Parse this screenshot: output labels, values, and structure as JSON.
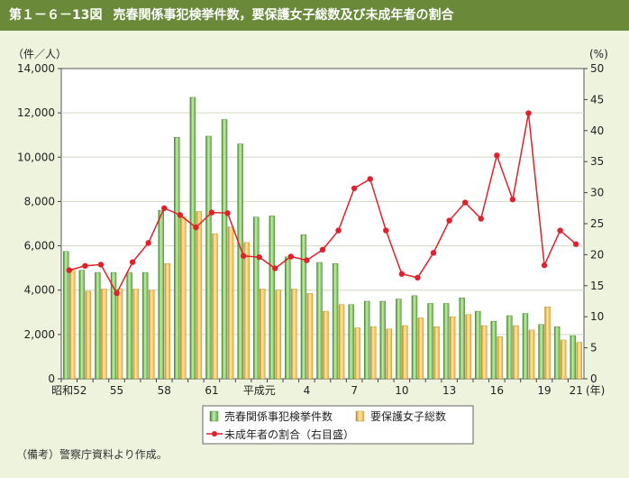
{
  "header": {
    "fig_label": "第１－６－13図",
    "title": "売春関係事犯検挙件数，要保護女子総数及び未成年者の割合"
  },
  "note": "（備考）警察庁資料より作成。",
  "colors": {
    "bar_green": "#5fae3e",
    "bar_orange": "#f0b33a",
    "line_red": "#e0202a",
    "background": "#eef3de",
    "header": "#6a8a3a"
  },
  "chart_data": {
    "type": "bar",
    "left_axis_unit": "（件／人）",
    "right_axis_unit": "(%)",
    "x_unit": "(年)",
    "categories": [
      "昭和52",
      "53",
      "54",
      "55",
      "56",
      "57",
      "58",
      "59",
      "60",
      "61",
      "62",
      "63",
      "平成元",
      "2",
      "3",
      "4",
      "5",
      "6",
      "7",
      "8",
      "9",
      "10",
      "11",
      "12",
      "13",
      "14",
      "15",
      "16",
      "17",
      "18",
      "19",
      "20",
      "21"
    ],
    "x_tick_labels": [
      {
        "index": 0,
        "label": "昭和52"
      },
      {
        "index": 3,
        "label": "55"
      },
      {
        "index": 6,
        "label": "58"
      },
      {
        "index": 9,
        "label": "61"
      },
      {
        "index": 12,
        "label": "平成元"
      },
      {
        "index": 15,
        "label": "4"
      },
      {
        "index": 18,
        "label": "7"
      },
      {
        "index": 21,
        "label": "10"
      },
      {
        "index": 24,
        "label": "13"
      },
      {
        "index": 27,
        "label": "16"
      },
      {
        "index": 30,
        "label": "19"
      },
      {
        "index": 32,
        "label": "21"
      }
    ],
    "ylim": [
      0,
      14000
    ],
    "y_ticks": [
      "0",
      "2,000",
      "4,000",
      "6,000",
      "8,000",
      "10,000",
      "12,000",
      "14,000"
    ],
    "y2lim": [
      0,
      50
    ],
    "y2_ticks": [
      "0",
      "5",
      "10",
      "15",
      "20",
      "25",
      "30",
      "35",
      "40",
      "45",
      "50"
    ],
    "series": [
      {
        "name": "売春関係事犯検挙件数",
        "axis": "left",
        "kind": "bar",
        "color": "#5fae3e",
        "values": [
          5750,
          4900,
          4800,
          4800,
          4800,
          4800,
          7600,
          10900,
          12700,
          10950,
          11700,
          10600,
          7300,
          7350,
          5500,
          6500,
          5250,
          5200,
          3350,
          3500,
          3500,
          3600,
          3750,
          3400,
          3400,
          3650,
          3050,
          2600,
          2850,
          2950,
          2450,
          2350,
          1950
        ]
      },
      {
        "name": "要保護女子総数",
        "axis": "left",
        "kind": "bar",
        "color": "#f0b33a",
        "values": [
          4900,
          3950,
          4050,
          4050,
          4050,
          4000,
          5200,
          7300,
          7550,
          6550,
          6850,
          6150,
          4050,
          4000,
          4050,
          3850,
          3050,
          3350,
          2300,
          2350,
          2250,
          2400,
          2750,
          2350,
          2800,
          2900,
          2400,
          1900,
          2400,
          2200,
          3250,
          1750,
          1650
        ]
      },
      {
        "name": "未成年者の割合（右目盛）",
        "axis": "right",
        "kind": "line",
        "color": "#e0202a",
        "values": [
          17.5,
          18.2,
          18.4,
          13.8,
          18.8,
          21.9,
          27.5,
          26.4,
          24.4,
          26.8,
          26.7,
          19.8,
          19.6,
          17.8,
          19.7,
          19.1,
          20.8,
          23.9,
          30.7,
          32.2,
          23.9,
          16.9,
          16.3,
          20.3,
          25.5,
          28.4,
          25.8,
          36.0,
          28.9,
          42.8,
          18.3,
          23.9,
          21.7
        ]
      }
    ]
  }
}
